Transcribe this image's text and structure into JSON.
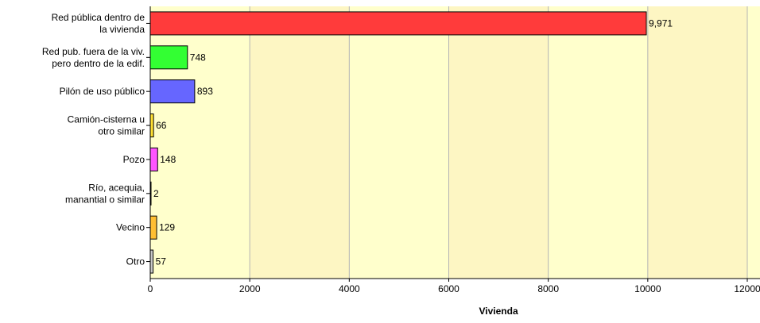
{
  "chart_data": {
    "type": "bar",
    "orientation": "horizontal",
    "xlabel": "Vivienda",
    "xlim": [
      0,
      12000
    ],
    "xticks": [
      0,
      2000,
      4000,
      6000,
      8000,
      10000,
      12000
    ],
    "xtick_labels": [
      "0",
      "2000",
      "4000",
      "6000",
      "8000",
      "10000",
      "12000"
    ],
    "categories": [
      [
        "Red pública dentro de",
        "la vivienda"
      ],
      [
        "Red pub. fuera de la viv.",
        "pero dentro de la edif."
      ],
      [
        "Pilón de uso público"
      ],
      [
        "Camión-cisterna u",
        "otro similar"
      ],
      [
        "Pozo"
      ],
      [
        "Río, acequia,",
        "manantial o similar"
      ],
      [
        "Vecino"
      ],
      [
        "Otro"
      ]
    ],
    "values": [
      9971,
      748,
      893,
      66,
      148,
      2,
      129,
      57
    ],
    "value_labels": [
      "9,971",
      "748",
      "893",
      "66",
      "148",
      "2",
      "129",
      "57"
    ],
    "bar_colors": [
      "#ff3b3b",
      "#33ff33",
      "#6666ff",
      "#ffe033",
      "#ff55ff",
      "#ffe033",
      "#ffbf33",
      "#c8c8c8"
    ],
    "background_bands": [
      "#ffffcc",
      "#fdf6c3"
    ],
    "grid": true
  }
}
